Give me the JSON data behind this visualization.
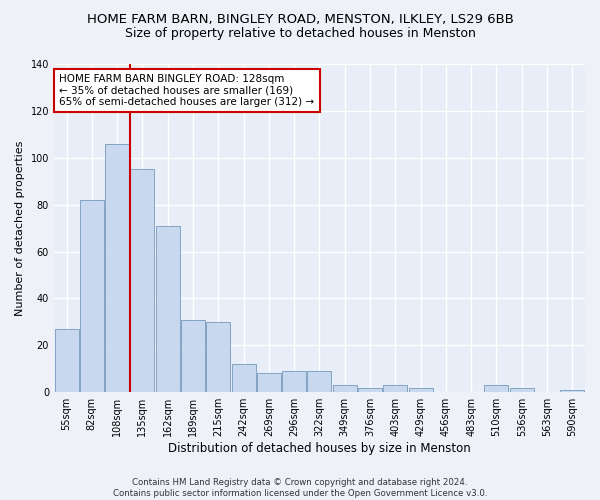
{
  "title": "HOME FARM BARN, BINGLEY ROAD, MENSTON, ILKLEY, LS29 6BB",
  "subtitle": "Size of property relative to detached houses in Menston",
  "xlabel": "Distribution of detached houses by size in Menston",
  "ylabel": "Number of detached properties",
  "footnote": "Contains HM Land Registry data © Crown copyright and database right 2024.\nContains public sector information licensed under the Open Government Licence v3.0.",
  "categories": [
    "55sqm",
    "82sqm",
    "108sqm",
    "135sqm",
    "162sqm",
    "189sqm",
    "215sqm",
    "242sqm",
    "269sqm",
    "296sqm",
    "322sqm",
    "349sqm",
    "376sqm",
    "403sqm",
    "429sqm",
    "456sqm",
    "483sqm",
    "510sqm",
    "536sqm",
    "563sqm",
    "590sqm"
  ],
  "values": [
    27,
    82,
    106,
    95,
    71,
    31,
    30,
    12,
    8,
    9,
    9,
    3,
    2,
    3,
    2,
    0,
    0,
    3,
    2,
    0,
    1
  ],
  "bar_color": "#c8d8ee",
  "bar_edge_color": "#7799bb",
  "vline_x_index": 2.5,
  "vline_color": "#cc0000",
  "annotation_text": "HOME FARM BARN BINGLEY ROAD: 128sqm\n← 35% of detached houses are smaller (169)\n65% of semi-detached houses are larger (312) →",
  "annotation_box_color": "#ffffff",
  "annotation_box_edge": "#cc0000",
  "ylim": [
    0,
    140
  ],
  "yticks": [
    0,
    20,
    40,
    60,
    80,
    100,
    120,
    140
  ],
  "background_color": "#eef2f8",
  "plot_bg_color": "#e8eef8",
  "grid_color": "#ffffff",
  "title_fontsize": 9.5,
  "subtitle_fontsize": 9,
  "tick_fontsize": 7,
  "ylabel_fontsize": 8,
  "xlabel_fontsize": 8.5,
  "annotation_fontsize": 7.5
}
